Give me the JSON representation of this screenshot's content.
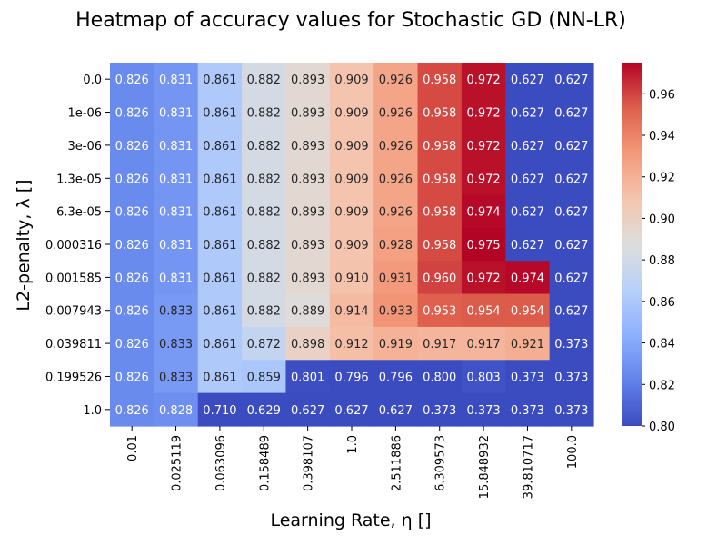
{
  "chart_data": {
    "type": "heatmap",
    "title": "Heatmap of accuracy values for Stochastic GD (NN-LR)",
    "xlabel": "Learning Rate, η []",
    "ylabel": "L2-penalty, λ []",
    "x_categories": [
      "0.01",
      "0.025119",
      "0.063096",
      "0.158489",
      "0.398107",
      "1.0",
      "2.511886",
      "6.309573",
      "15.848932",
      "39.810717",
      "100.0"
    ],
    "y_categories": [
      "0.0",
      "1e-06",
      "3e-06",
      "1.3e-05",
      "6.3e-05",
      "0.000316",
      "0.001585",
      "0.007943",
      "0.039811",
      "0.199526",
      "1.0"
    ],
    "values": [
      [
        0.826,
        0.831,
        0.861,
        0.882,
        0.893,
        0.909,
        0.926,
        0.958,
        0.972,
        0.627,
        0.627
      ],
      [
        0.826,
        0.831,
        0.861,
        0.882,
        0.893,
        0.909,
        0.926,
        0.958,
        0.972,
        0.627,
        0.627
      ],
      [
        0.826,
        0.831,
        0.861,
        0.882,
        0.893,
        0.909,
        0.926,
        0.958,
        0.972,
        0.627,
        0.627
      ],
      [
        0.826,
        0.831,
        0.861,
        0.882,
        0.893,
        0.909,
        0.926,
        0.958,
        0.972,
        0.627,
        0.627
      ],
      [
        0.826,
        0.831,
        0.861,
        0.882,
        0.893,
        0.909,
        0.926,
        0.958,
        0.974,
        0.627,
        0.627
      ],
      [
        0.826,
        0.831,
        0.861,
        0.882,
        0.893,
        0.909,
        0.928,
        0.958,
        0.975,
        0.627,
        0.627
      ],
      [
        0.826,
        0.831,
        0.861,
        0.882,
        0.893,
        0.91,
        0.931,
        0.96,
        0.972,
        0.974,
        0.627
      ],
      [
        0.826,
        0.833,
        0.861,
        0.882,
        0.889,
        0.914,
        0.933,
        0.953,
        0.954,
        0.954,
        0.627
      ],
      [
        0.826,
        0.833,
        0.861,
        0.872,
        0.898,
        0.912,
        0.919,
        0.917,
        0.917,
        0.921,
        0.373
      ],
      [
        0.826,
        0.833,
        0.861,
        0.859,
        0.801,
        0.796,
        0.796,
        0.8,
        0.803,
        0.373,
        0.373
      ],
      [
        0.826,
        0.828,
        0.71,
        0.629,
        0.627,
        0.627,
        0.627,
        0.373,
        0.373,
        0.373,
        0.373
      ]
    ],
    "colormap": "coolwarm",
    "vmin": 0.8,
    "vmax": 0.975,
    "colorbar_ticks": [
      "0.80",
      "0.82",
      "0.84",
      "0.86",
      "0.88",
      "0.90",
      "0.92",
      "0.94",
      "0.96"
    ],
    "annotation_decimals": 3
  }
}
